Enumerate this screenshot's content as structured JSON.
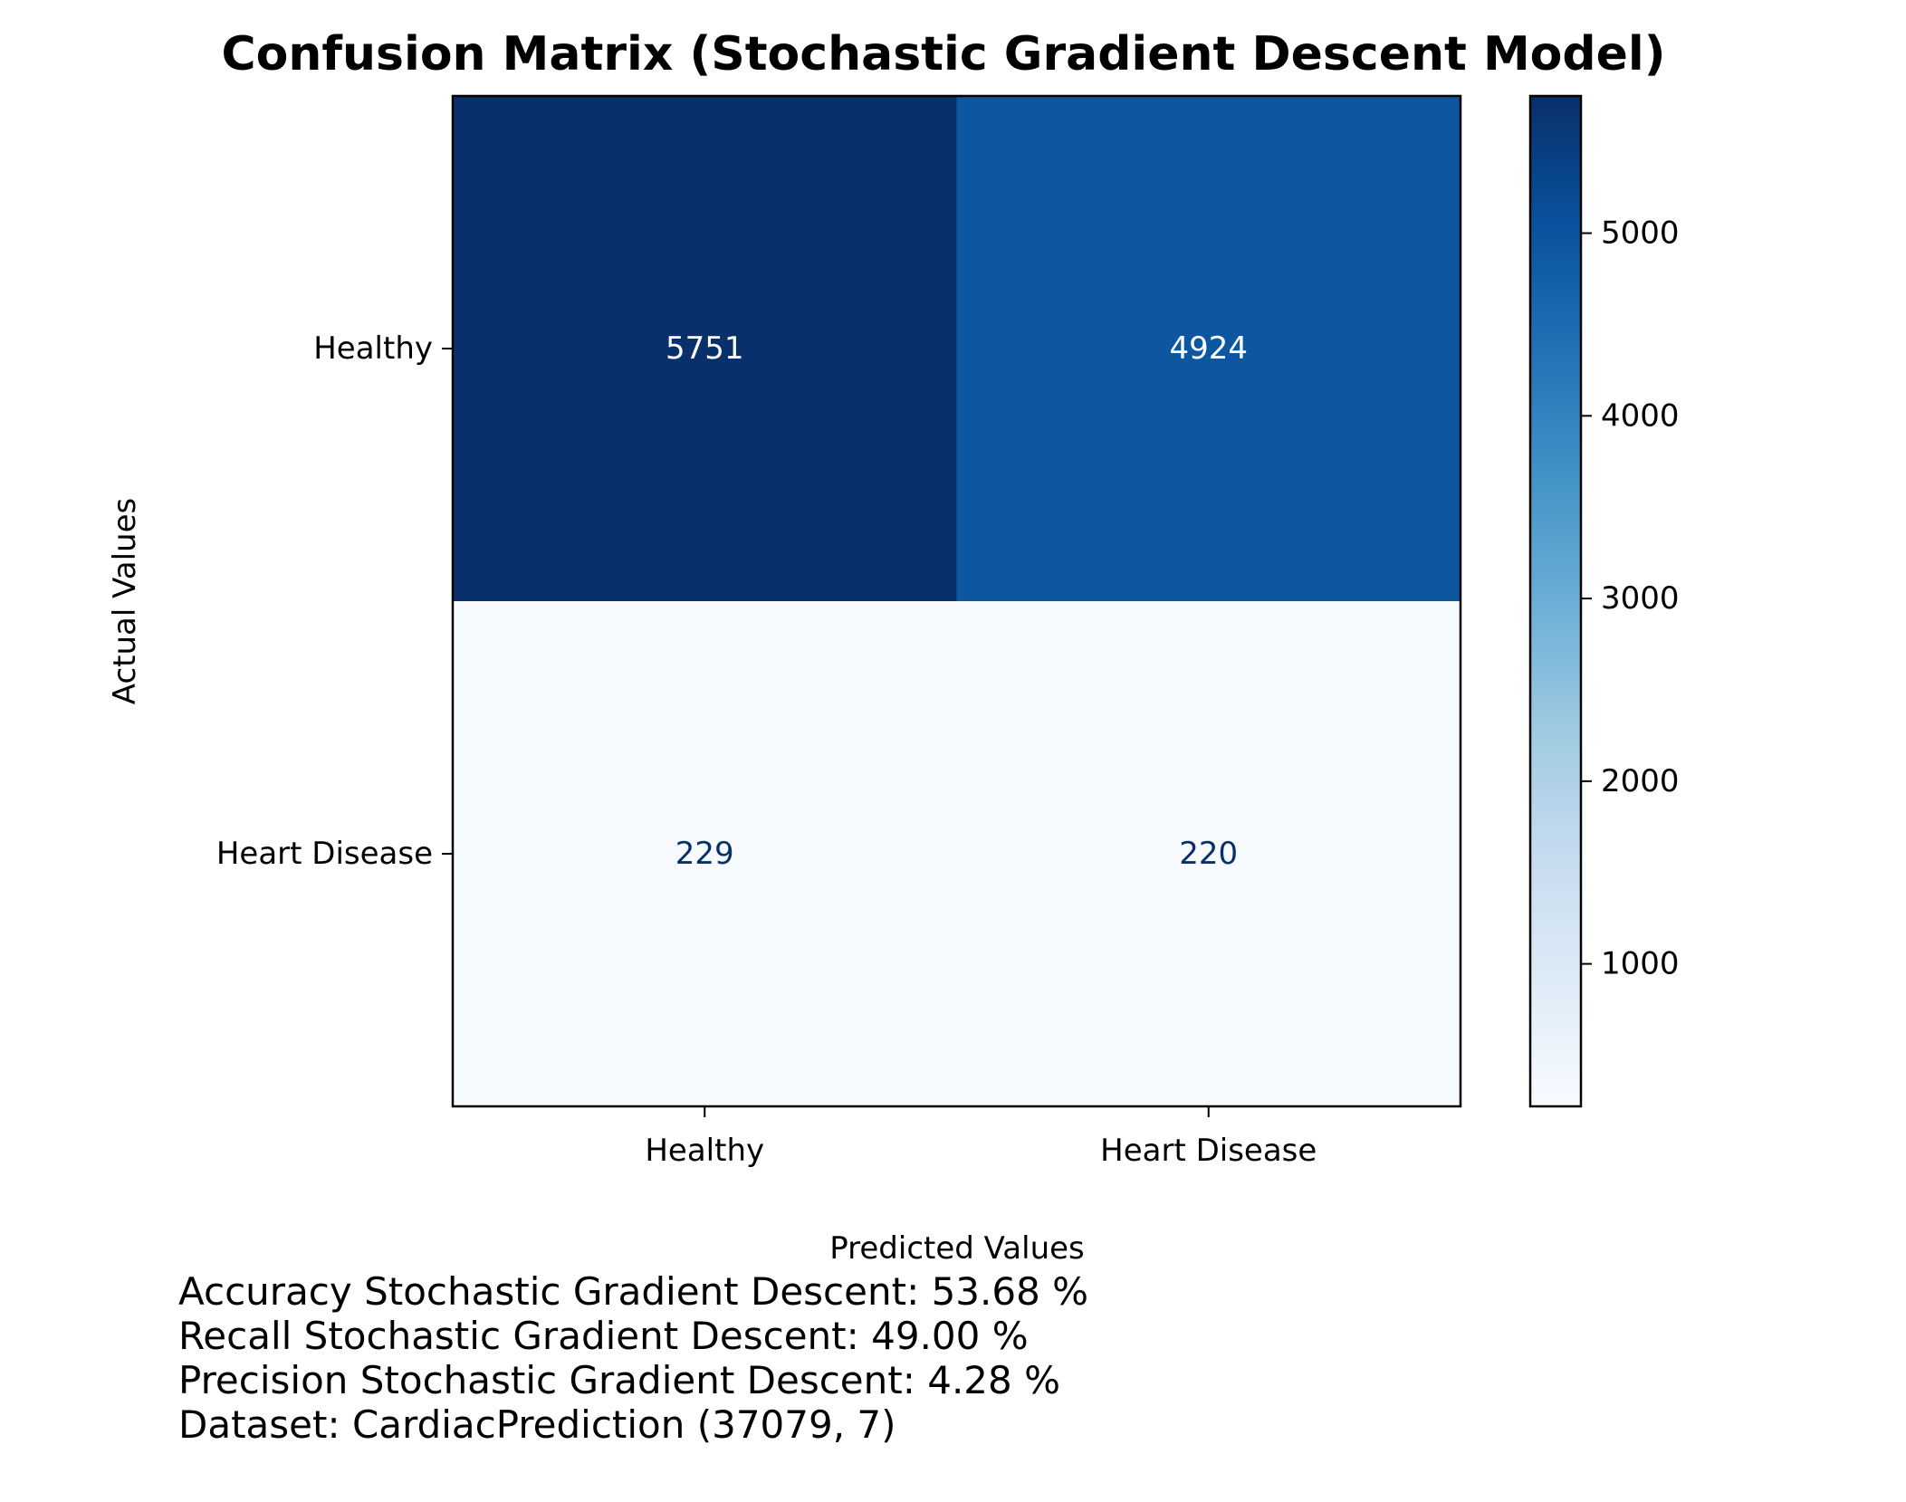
{
  "chart_data": {
    "type": "heatmap",
    "title": "Confusion Matrix (Stochastic Gradient Descent Model)",
    "xlabel": "Predicted Values",
    "ylabel": "Actual Values",
    "x_categories": [
      "Healthy",
      "Heart Disease"
    ],
    "y_categories": [
      "Healthy",
      "Heart Disease"
    ],
    "values": [
      [
        5751,
        4924
      ],
      [
        229,
        220
      ]
    ],
    "colormap": "Blues",
    "colormap_stops": [
      "#f7fbff",
      "#deebf7",
      "#c6dbef",
      "#9ecae1",
      "#6baed6",
      "#4292c6",
      "#2171b5",
      "#08519c",
      "#08306b"
    ],
    "colorbar": {
      "range": [
        220,
        5751
      ],
      "ticks": [
        1000,
        2000,
        3000,
        4000,
        5000
      ]
    },
    "grid": false,
    "legend": "colorbar-right"
  },
  "stats": [
    "Accuracy Stochastic Gradient Descent: 53.68 %",
    "Recall Stochastic Gradient Descent: 49.00 %",
    "Precision Stochastic Gradient Descent: 4.28 %",
    "Dataset: CardiacPrediction (37079, 7)"
  ]
}
